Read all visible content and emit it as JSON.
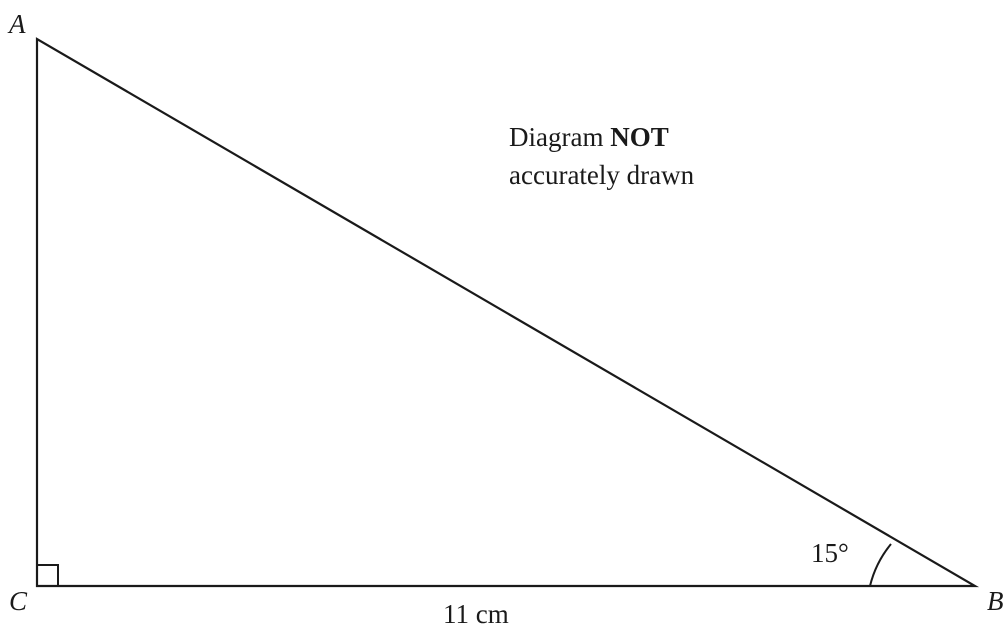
{
  "vertices": {
    "a": "A",
    "b": "B",
    "c": "C"
  },
  "angle_b": "15°",
  "side_cb": "11 cm",
  "note": {
    "line1_prefix": "Diagram",
    "line1_bold": "NOT",
    "line2": "accurately drawn"
  },
  "colors": {
    "stroke": "#1a1a1a",
    "background": "#ffffff"
  }
}
